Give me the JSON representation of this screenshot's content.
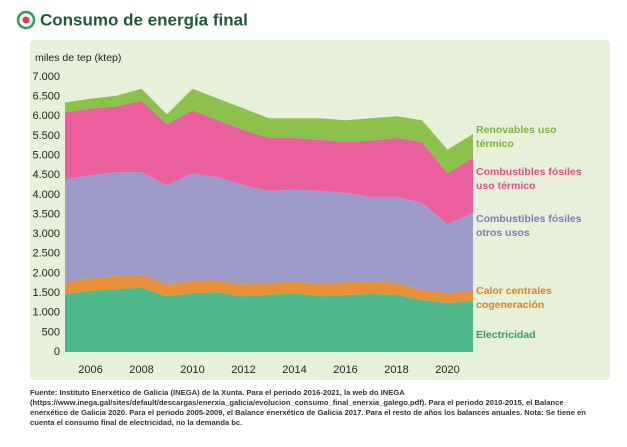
{
  "chart_data": {
    "type": "stacked-area",
    "title": "Consumo de energía final",
    "y_label": "miles de tep (ktep)",
    "x": [
      2005,
      2006,
      2007,
      2008,
      2009,
      2010,
      2011,
      2012,
      2013,
      2014,
      2015,
      2016,
      2017,
      2018,
      2019,
      2020,
      2021
    ],
    "xlim": [
      2005,
      2021
    ],
    "xticks": [
      2006,
      2008,
      2010,
      2012,
      2014,
      2016,
      2018,
      2020
    ],
    "ylim": [
      0,
      7000
    ],
    "yticks": [
      0,
      {
        "value": 500,
        "label": "500"
      },
      {
        "value": 1000,
        "label": "1.000"
      },
      {
        "value": 1500,
        "label": "1.500"
      },
      {
        "value": 2000,
        "label": "2.000"
      },
      {
        "value": 2500,
        "label": "2.500"
      },
      {
        "value": 3000,
        "label": "3.000"
      },
      {
        "value": 3500,
        "label": "3.500"
      },
      {
        "value": 4000,
        "label": "4.000"
      },
      {
        "value": 4500,
        "label": "4.500"
      },
      {
        "value": 5000,
        "label": "5.000"
      },
      {
        "value": 5500,
        "label": "5.500"
      },
      {
        "value": 6000,
        "label": "6.000"
      },
      {
        "value": 6500,
        "label": "6.500"
      },
      {
        "value": 7000,
        "label": "7.000"
      }
    ],
    "series": [
      {
        "name": "Electricidad",
        "color": "#4fb98c",
        "label_color": "#2f9a6c",
        "values": [
          1480,
          1560,
          1600,
          1640,
          1420,
          1500,
          1520,
          1420,
          1460,
          1500,
          1420,
          1450,
          1480,
          1460,
          1330,
          1250,
          1300
        ]
      },
      {
        "name": "Calor centrales cogeneración",
        "color": "#e9913a",
        "label_color": "#e07f25",
        "values": [
          300,
          320,
          340,
          330,
          300,
          320,
          300,
          300,
          300,
          300,
          320,
          330,
          330,
          300,
          250,
          250,
          270
        ]
      },
      {
        "name": "Combustibles fósiles otros usos",
        "color": "#9d9cc9",
        "label_color": "#7c7cb6",
        "values": [
          2620,
          2620,
          2640,
          2610,
          2530,
          2730,
          2630,
          2530,
          2340,
          2330,
          2360,
          2270,
          2140,
          2190,
          2220,
          1750,
          1980
        ]
      },
      {
        "name": "Combustibles fósiles uso térmico",
        "color": "#e9609c",
        "label_color": "#e04d8c",
        "values": [
          1700,
          1700,
          1670,
          1820,
          1550,
          1600,
          1450,
          1400,
          1350,
          1320,
          1300,
          1300,
          1430,
          1500,
          1550,
          1300,
          1400
        ]
      },
      {
        "name": "Renovables uso térmico",
        "color": "#8cc24c",
        "label_color": "#7cb33c",
        "values": [
          250,
          250,
          270,
          300,
          250,
          550,
          550,
          550,
          500,
          500,
          550,
          550,
          570,
          550,
          550,
          600,
          600
        ]
      }
    ],
    "note": "Fuente: Instituto Enerxético de Galicia (INEGA) de la Xunta. Para el periodo 2016-2021, la web do INEGA (https://www.inega.gal/sites/default/descargas/enerxia_galicia/evolucion_consumo_final_enerxia_galego.pdf). Para el periodo 2010-2015, el Balance enerxético de Galicia 2020. Para el periodo 2005-2009, el Balance enerxético de Galicia 2017. Para el resto de años los balances anuales. Nota: Se tiene en cuenta el consumo final de electricidad, no la demanda bc."
  }
}
